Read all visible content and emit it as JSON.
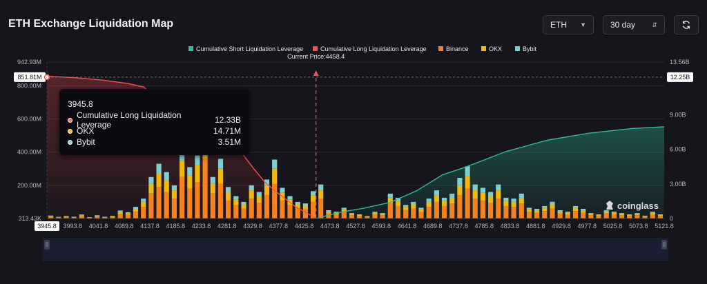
{
  "header": {
    "title": "ETH Exchange Liquidation Map"
  },
  "controls": {
    "symbol": {
      "value": "ETH"
    },
    "range": {
      "value": "30 day"
    },
    "refresh_icon": "refresh-icon"
  },
  "tooltip": {
    "title": "3945.8",
    "rows": [
      {
        "name": "Cumulative Long Liquidation Leverage",
        "value": "12.33B",
        "color": "#ff6b6b"
      },
      {
        "name": "OKX",
        "value": "14.71M",
        "color": "#f0b90b"
      },
      {
        "name": "Bybit",
        "value": "3.51M",
        "color": "#7ecfd0"
      }
    ]
  },
  "watermark": {
    "text": "coinglass"
  },
  "colors": {
    "short": "#2ebd9e",
    "long": "#ff4d4f",
    "binance": "#f5811f",
    "okx": "#f0b90b",
    "bybit": "#7ecfd0"
  },
  "chart_data": {
    "type": "bar",
    "title": "",
    "legend": {
      "placement": "top-center",
      "items": [
        "Cumulative Short Liquidation Leverage",
        "Cumulative Long Liquidation Leverage",
        "Binance",
        "OKX",
        "Bybit"
      ]
    },
    "current_price": {
      "label": "Current Price:4458.4",
      "value": 4458.4
    },
    "x_axis": {
      "range": [
        3945.8,
        5121.8
      ],
      "ticks": [
        "3945.8",
        "3993.8",
        "4041.8",
        "4089.8",
        "4137.8",
        "4185.8",
        "4233.8",
        "4281.8",
        "4329.8",
        "4377.8",
        "4425.8",
        "4473.8",
        "4527.8",
        "4593.8",
        "4641.8",
        "4689.8",
        "4737.8",
        "4785.8",
        "4833.8",
        "4881.8",
        "4929.8",
        "4977.8",
        "5025.8",
        "5073.8",
        "5121.8"
      ],
      "highlight": "3945.8"
    },
    "y_left": {
      "range": [
        313430,
        942930000
      ],
      "ticks": [
        {
          "label": "942.93M",
          "value": 942930000
        },
        {
          "label": "800.00M",
          "value": 800000000
        },
        {
          "label": "600.00M",
          "value": 600000000
        },
        {
          "label": "400.00M",
          "value": 400000000
        },
        {
          "label": "200.00M",
          "value": 200000000
        },
        {
          "label": "313.43K",
          "value": 313430
        }
      ],
      "highlight": {
        "label": "851.81M",
        "value": 851810000
      }
    },
    "y_right": {
      "range": [
        0,
        13560000000
      ],
      "ticks": [
        {
          "label": "13.56B",
          "value": 13560000000
        },
        {
          "label": "9.00B",
          "value": 9000000000
        },
        {
          "label": "6.00B",
          "value": 6000000000
        },
        {
          "label": "3.00B",
          "value": 3000000000
        },
        {
          "label": "0",
          "value": 0
        }
      ],
      "highlight": {
        "label": "12.25B",
        "value": 12250000000
      }
    },
    "cumulative_long": {
      "name": "Cumulative Long Liquidation Leverage",
      "x": [
        3945.8,
        4000,
        4050,
        4100,
        4130,
        4150,
        4180,
        4200,
        4230,
        4260,
        4290,
        4320,
        4340,
        4360,
        4380,
        4400,
        4420,
        4440,
        4455,
        4458.4
      ],
      "y": [
        12.33,
        12.2,
        12.0,
        11.7,
        11.4,
        10.6,
        9.9,
        9.3,
        8.6,
        7.6,
        6.6,
        5.5,
        4.3,
        3.2,
        2.4,
        1.7,
        1.0,
        0.5,
        0.1,
        0.0
      ]
    },
    "cumulative_short": {
      "name": "Cumulative Short Liquidation Leverage",
      "x": [
        4458.4,
        4500,
        4550,
        4600,
        4650,
        4700,
        4740,
        4780,
        4820,
        4860,
        4900,
        4940,
        4980,
        5020,
        5060,
        5100,
        5121.8
      ],
      "y": [
        0.0,
        0.5,
        0.9,
        1.4,
        2.4,
        3.8,
        4.4,
        5.1,
        5.8,
        6.3,
        6.8,
        7.1,
        7.4,
        7.6,
        7.8,
        7.9,
        7.95
      ]
    },
    "series": [
      {
        "name": "Binance",
        "values": [
          10,
          5,
          8,
          6,
          14,
          4,
          12,
          6,
          9,
          28,
          22,
          40,
          70,
          150,
          190,
          160,
          120,
          250,
          180,
          220,
          360,
          150,
          210,
          110,
          80,
          60,
          120,
          95,
          140,
          210,
          110,
          80,
          60,
          55,
          100,
          120,
          30,
          25,
          40,
          20,
          15,
          8,
          25,
          20,
          90,
          75,
          50,
          60,
          40,
          70,
          100,
          75,
          90,
          140,
          180,
          120,
          110,
          95,
          120,
          75,
          70,
          90,
          40,
          35,
          45,
          60,
          30,
          25,
          45,
          35,
          20,
          15,
          30,
          25,
          20,
          15,
          20,
          10,
          25,
          15
        ]
      },
      {
        "name": "OKX",
        "values": [
          5,
          3,
          4,
          3,
          6,
          2,
          5,
          3,
          4,
          12,
          10,
          18,
          30,
          60,
          80,
          70,
          50,
          100,
          80,
          100,
          160,
          60,
          90,
          50,
          35,
          25,
          50,
          40,
          60,
          90,
          45,
          35,
          25,
          22,
          40,
          50,
          12,
          10,
          15,
          8,
          6,
          4,
          10,
          8,
          35,
          30,
          20,
          25,
          15,
          30,
          40,
          30,
          35,
          60,
          75,
          50,
          45,
          40,
          50,
          30,
          30,
          35,
          15,
          14,
          18,
          25,
          12,
          10,
          18,
          14,
          8,
          6,
          12,
          10,
          8,
          6,
          8,
          4,
          10,
          6
        ]
      },
      {
        "name": "Bybit",
        "values": [
          3,
          2,
          3,
          2,
          4,
          2,
          3,
          2,
          3,
          8,
          6,
          12,
          20,
          40,
          60,
          50,
          30,
          80,
          50,
          60,
          160,
          40,
          60,
          30,
          20,
          15,
          30,
          25,
          35,
          55,
          30,
          20,
          15,
          14,
          25,
          35,
          8,
          6,
          10,
          5,
          4,
          3,
          6,
          5,
          25,
          20,
          12,
          15,
          10,
          20,
          30,
          20,
          25,
          45,
          60,
          35,
          30,
          25,
          35,
          20,
          20,
          25,
          10,
          9,
          12,
          16,
          8,
          6,
          12,
          9,
          5,
          4,
          8,
          6,
          5,
          4,
          5,
          3,
          6,
          4
        ]
      }
    ]
  }
}
